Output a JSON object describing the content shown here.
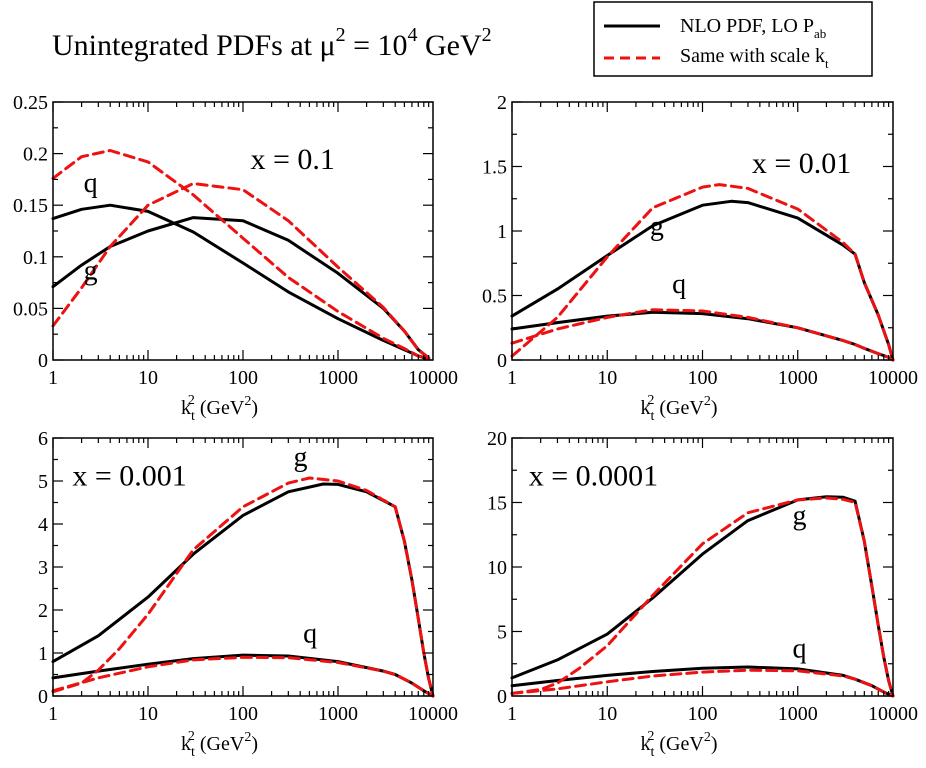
{
  "title": {
    "prefix": "Unintegrated PDFs at ",
    "mu": "μ",
    "exp_mu": "2",
    "equals": " = 10",
    "exp_ten": "4",
    "unit": " GeV",
    "exp_unit": "2"
  },
  "legend": {
    "placement": "top-right",
    "items": [
      {
        "name": "NLO PDF, LO P",
        "subscript": "ab",
        "style": "solid",
        "color": "#000000"
      },
      {
        "name": "Same with scale k",
        "subscript": "t",
        "style": "dashed",
        "color": "#ee1111"
      }
    ]
  },
  "axis_label": {
    "k": "k",
    "sub": "t",
    "sup": "2",
    "unit_open": "(GeV",
    "unit_sup": "2",
    "unit_close": ")"
  },
  "chart_data": [
    {
      "type": "line",
      "panel": "top-left",
      "xscale": "log",
      "xlim": [
        1,
        10000
      ],
      "ylim": [
        0,
        0.25
      ],
      "xticks": [
        1,
        10,
        100,
        1000,
        10000
      ],
      "xtick_labels": [
        "1",
        "10",
        "100",
        "1000",
        "10000"
      ],
      "yticks": [
        0,
        0.05,
        0.1,
        0.15,
        0.2,
        0.25
      ],
      "ytick_labels": [
        "0",
        "0.05",
        "0.1",
        "0.15",
        "0.2",
        "0.25"
      ],
      "annotation": "x = 0.1",
      "annotation_pos": [
        120,
        0.185
      ],
      "curve_labels": [
        {
          "text": "q",
          "x": 2.1,
          "y": 0.163
        },
        {
          "text": "g",
          "x": 2.1,
          "y": 0.078
        }
      ],
      "series": [
        {
          "name": "q NLO PDF, LO Pab",
          "style": "solid",
          "x": [
            1,
            2,
            4,
            10,
            30,
            100,
            300,
            1000,
            3000,
            5000,
            7000,
            9000
          ],
          "y": [
            0.137,
            0.146,
            0.15,
            0.144,
            0.124,
            0.094,
            0.066,
            0.04,
            0.019,
            0.01,
            0.004,
            0.001
          ]
        },
        {
          "name": "g NLO PDF, LO Pab",
          "style": "solid",
          "x": [
            1,
            2,
            4,
            10,
            30,
            100,
            300,
            1000,
            3000,
            5000,
            7000,
            9000
          ],
          "y": [
            0.071,
            0.092,
            0.11,
            0.125,
            0.138,
            0.135,
            0.116,
            0.084,
            0.05,
            0.028,
            0.01,
            0.002
          ]
        },
        {
          "name": "q same with scale kt",
          "style": "dashed",
          "x": [
            1,
            2,
            4,
            10,
            30,
            100,
            300,
            1000,
            3000,
            5000,
            7000,
            9000
          ],
          "y": [
            0.176,
            0.197,
            0.203,
            0.192,
            0.16,
            0.118,
            0.08,
            0.047,
            0.021,
            0.011,
            0.004,
            0.001
          ]
        },
        {
          "name": "g same with scale kt",
          "style": "dashed",
          "x": [
            1,
            2,
            4,
            10,
            30,
            100,
            300,
            1000,
            3000,
            5000,
            7000,
            9000
          ],
          "y": [
            0.033,
            0.07,
            0.11,
            0.15,
            0.171,
            0.165,
            0.135,
            0.09,
            0.051,
            0.028,
            0.01,
            0.002
          ]
        }
      ]
    },
    {
      "type": "line",
      "panel": "top-right",
      "xscale": "log",
      "xlim": [
        1,
        10000
      ],
      "ylim": [
        0,
        2
      ],
      "xticks": [
        1,
        10,
        100,
        1000,
        10000
      ],
      "xtick_labels": [
        "1",
        "10",
        "100",
        "1000",
        "10000"
      ],
      "yticks": [
        0,
        0.5,
        1,
        1.5,
        2
      ],
      "ytick_labels": [
        "0",
        "0.5",
        "1",
        "1.5",
        "2"
      ],
      "annotation": "x = 0.01",
      "annotation_pos": [
        330,
        1.45
      ],
      "curve_labels": [
        {
          "text": "g",
          "x": 28,
          "y": 0.97
        },
        {
          "text": "q",
          "x": 48,
          "y": 0.52
        }
      ],
      "series": [
        {
          "name": "g NLO PDF, LO Pab",
          "style": "solid",
          "x": [
            1,
            3,
            10,
            30,
            100,
            200,
            300,
            1000,
            3000,
            4000,
            5000,
            7000,
            9000,
            10000
          ],
          "y": [
            0.34,
            0.55,
            0.81,
            1.04,
            1.2,
            1.23,
            1.22,
            1.1,
            0.89,
            0.82,
            0.6,
            0.35,
            0.12,
            0.0
          ]
        },
        {
          "name": "q NLO PDF, LO Pab",
          "style": "solid",
          "x": [
            1,
            3,
            10,
            30,
            100,
            300,
            1000,
            3000,
            4000,
            5000,
            7000,
            9000,
            10000
          ],
          "y": [
            0.24,
            0.29,
            0.34,
            0.37,
            0.36,
            0.32,
            0.25,
            0.15,
            0.12,
            0.09,
            0.05,
            0.02,
            0.0
          ]
        },
        {
          "name": "g same with scale kt",
          "style": "dashed",
          "x": [
            1,
            3,
            10,
            30,
            100,
            150,
            300,
            1000,
            3000,
            4000,
            5000,
            7000,
            9000,
            10000
          ],
          "y": [
            0.03,
            0.33,
            0.8,
            1.18,
            1.34,
            1.36,
            1.33,
            1.17,
            0.91,
            0.82,
            0.6,
            0.35,
            0.12,
            0.0
          ]
        },
        {
          "name": "q same with scale kt",
          "style": "dashed",
          "x": [
            1,
            3,
            10,
            30,
            100,
            300,
            1000,
            3000,
            4000,
            5000,
            7000,
            9000,
            10000
          ],
          "y": [
            0.13,
            0.24,
            0.33,
            0.39,
            0.38,
            0.33,
            0.25,
            0.15,
            0.12,
            0.09,
            0.05,
            0.02,
            0.0
          ]
        }
      ]
    },
    {
      "type": "line",
      "panel": "bottom-left",
      "xscale": "log",
      "xlim": [
        1,
        10000
      ],
      "ylim": [
        0,
        6
      ],
      "xticks": [
        1,
        10,
        100,
        1000,
        10000
      ],
      "xtick_labels": [
        "1",
        "10",
        "100",
        "1000",
        "10000"
      ],
      "yticks": [
        0,
        1,
        2,
        3,
        4,
        5,
        6
      ],
      "ytick_labels": [
        "0",
        "1",
        "2",
        "3",
        "4",
        "5",
        "6"
      ],
      "annotation": "x = 0.001",
      "annotation_pos": [
        1.6,
        4.9
      ],
      "curve_labels": [
        {
          "text": "g",
          "x": 340,
          "y": 5.35
        },
        {
          "text": "q",
          "x": 430,
          "y": 1.25
        }
      ],
      "series": [
        {
          "name": "g NLO PDF, LO Pab",
          "style": "solid",
          "x": [
            1,
            3,
            10,
            30,
            100,
            300,
            700,
            1000,
            2000,
            4000,
            5000,
            6000,
            7000,
            8000,
            9000,
            10000
          ],
          "y": [
            0.8,
            1.4,
            2.3,
            3.3,
            4.2,
            4.75,
            4.93,
            4.92,
            4.75,
            4.4,
            3.6,
            2.7,
            1.8,
            1.0,
            0.4,
            0.0
          ]
        },
        {
          "name": "q NLO PDF, LO Pab",
          "style": "solid",
          "x": [
            1,
            3,
            10,
            30,
            100,
            300,
            1000,
            3000,
            4000,
            6000,
            8000,
            10000
          ],
          "y": [
            0.42,
            0.58,
            0.74,
            0.87,
            0.95,
            0.93,
            0.8,
            0.58,
            0.5,
            0.3,
            0.12,
            0.0
          ]
        },
        {
          "name": "g same with scale kt",
          "style": "dashed",
          "x": [
            1,
            2,
            3,
            5,
            10,
            30,
            100,
            300,
            500,
            1000,
            2000,
            4000,
            5000,
            6000,
            7000,
            8000,
            9000,
            10000
          ],
          "y": [
            0.1,
            0.3,
            0.6,
            1.1,
            1.9,
            3.4,
            4.4,
            4.95,
            5.07,
            5.0,
            4.78,
            4.4,
            3.6,
            2.7,
            1.8,
            1.0,
            0.4,
            0.0
          ]
        },
        {
          "name": "q same with scale kt",
          "style": "dashed",
          "x": [
            1,
            3,
            10,
            30,
            100,
            300,
            1000,
            3000,
            4000,
            6000,
            8000,
            10000
          ],
          "y": [
            0.12,
            0.42,
            0.68,
            0.84,
            0.9,
            0.89,
            0.78,
            0.58,
            0.5,
            0.3,
            0.12,
            0.0
          ]
        }
      ]
    },
    {
      "type": "line",
      "panel": "bottom-right",
      "xscale": "log",
      "xlim": [
        1,
        10000
      ],
      "ylim": [
        0,
        20
      ],
      "xticks": [
        1,
        10,
        100,
        1000,
        10000
      ],
      "xtick_labels": [
        "1",
        "10",
        "100",
        "1000",
        "10000"
      ],
      "yticks": [
        0,
        5,
        10,
        15,
        20
      ],
      "ytick_labels": [
        "0",
        "5",
        "10",
        "15",
        "20"
      ],
      "annotation": "x = 0.0001",
      "annotation_pos": [
        1.5,
        16.3
      ],
      "curve_labels": [
        {
          "text": "g",
          "x": 880,
          "y": 13.3
        },
        {
          "text": "q",
          "x": 880,
          "y": 3.0
        }
      ],
      "series": [
        {
          "name": "g NLO PDF, LO Pab",
          "style": "solid",
          "x": [
            1,
            3,
            10,
            30,
            100,
            300,
            1000,
            2000,
            3000,
            4000,
            5000,
            6000,
            7000,
            8000,
            9000,
            10000
          ],
          "y": [
            1.4,
            2.8,
            4.8,
            7.6,
            11.0,
            13.6,
            15.2,
            15.45,
            15.4,
            15.1,
            12.0,
            8.5,
            5.5,
            3.0,
            1.2,
            0.0
          ]
        },
        {
          "name": "q NLO PDF, LO Pab",
          "style": "solid",
          "x": [
            1,
            3,
            10,
            30,
            100,
            300,
            1000,
            3000,
            4000,
            6000,
            8000,
            10000
          ],
          "y": [
            0.8,
            1.2,
            1.6,
            1.9,
            2.15,
            2.25,
            2.1,
            1.6,
            1.3,
            0.8,
            0.3,
            0.0
          ]
        },
        {
          "name": "g same with scale kt",
          "style": "dashed",
          "x": [
            1,
            2,
            3,
            5,
            10,
            30,
            100,
            300,
            1000,
            2000,
            3000,
            4000,
            5000,
            6000,
            7000,
            8000,
            9000,
            10000
          ],
          "y": [
            0.2,
            0.5,
            1.0,
            2.1,
            3.9,
            7.8,
            11.8,
            14.2,
            15.2,
            15.35,
            15.25,
            15.0,
            12.0,
            8.5,
            5.5,
            3.0,
            1.2,
            0.0
          ]
        },
        {
          "name": "q same with scale kt",
          "style": "dashed",
          "x": [
            1,
            3,
            10,
            30,
            100,
            300,
            1000,
            3000,
            4000,
            6000,
            8000,
            10000
          ],
          "y": [
            0.2,
            0.55,
            1.1,
            1.55,
            1.85,
            2.0,
            1.95,
            1.55,
            1.3,
            0.8,
            0.3,
            0.0
          ]
        }
      ]
    }
  ]
}
